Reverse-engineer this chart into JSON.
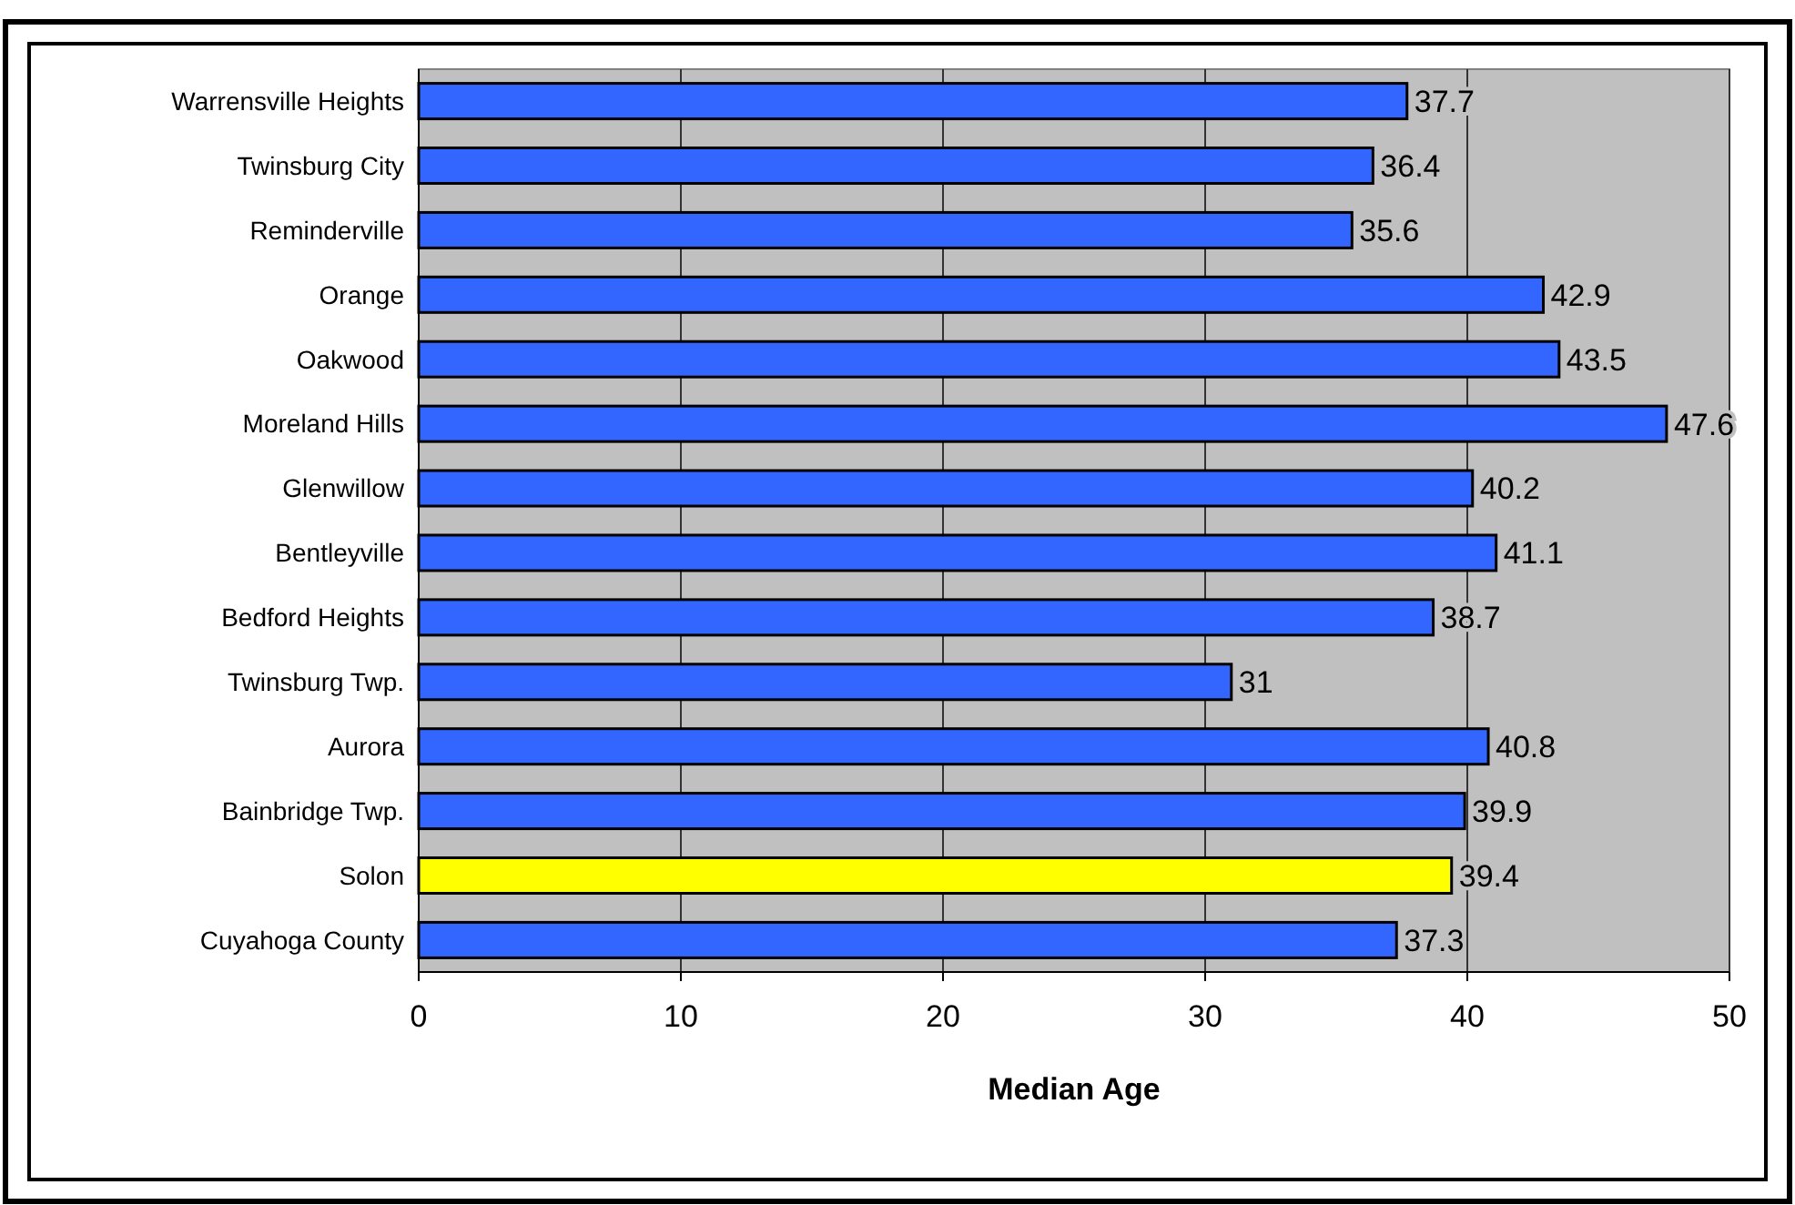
{
  "chart_data": {
    "type": "bar",
    "orientation": "horizontal",
    "xlabel": "Median Age",
    "categories": [
      "Warrensville Heights",
      "Twinsburg City",
      "Reminderville",
      "Orange",
      "Oakwood",
      "Moreland Hills",
      "Glenwillow",
      "Bentleyville",
      "Bedford Heights",
      "Twinsburg Twp.",
      "Aurora",
      "Bainbridge Twp.",
      "Solon",
      "Cuyahoga County"
    ],
    "values": [
      37.7,
      36.4,
      35.6,
      42.9,
      43.5,
      47.6,
      40.2,
      41.1,
      38.7,
      31,
      40.8,
      39.9,
      39.4,
      37.3
    ],
    "colors": [
      "#3366ff",
      "#3366ff",
      "#3366ff",
      "#3366ff",
      "#3366ff",
      "#3366ff",
      "#3366ff",
      "#3366ff",
      "#3366ff",
      "#3366ff",
      "#3366ff",
      "#3366ff",
      "#ffff00",
      "#3366ff"
    ],
    "xlim": [
      0,
      50
    ],
    "xticks": [
      0,
      10,
      20,
      30,
      40,
      50
    ],
    "grid": "x",
    "data_labels": true
  }
}
